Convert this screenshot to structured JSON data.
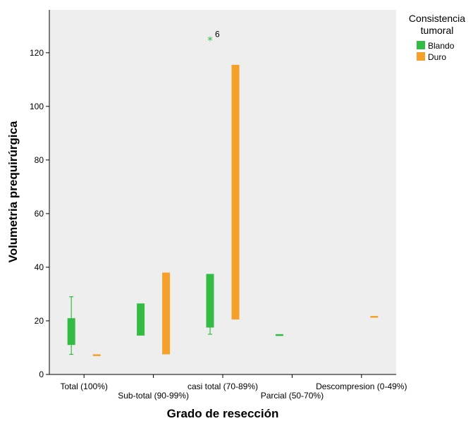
{
  "chart_data": {
    "type": "boxplot",
    "xlabel": "Grado de resección",
    "ylabel": "Volumetria prequirúrgica",
    "ylim": [
      0,
      136
    ],
    "yticks": [
      0,
      20,
      40,
      60,
      80,
      100,
      120
    ],
    "grid": false,
    "categories": [
      "Total (100%)",
      "Sub-total (90-99%)",
      "casi total (70-89%)",
      "Parcial (50-70%)",
      "Descompresion (0-49%)"
    ],
    "legend": {
      "title_line1": "Consistencia",
      "title_line2": "tumoral",
      "placement": "right",
      "entries": [
        "Blando",
        "Duro"
      ]
    },
    "series": [
      {
        "name": "Blando",
        "color": "#33bb44",
        "boxes": [
          {
            "category": 0,
            "min": 7.5,
            "q1": 11,
            "median": 17,
            "q3": 21,
            "max": 29
          },
          {
            "category": 1,
            "min": 14.5,
            "q1": 14.5,
            "median": 20,
            "q3": 26.5,
            "max": 26.5
          },
          {
            "category": 2,
            "min": 15,
            "q1": 17.5,
            "median": 25,
            "q3": 37.5,
            "max": 37.5
          },
          {
            "category": 3,
            "min": 14.7,
            "q1": 14.7,
            "median": 14.7,
            "q3": 14.7,
            "max": 14.7
          }
        ],
        "outliers": [
          {
            "category": 2,
            "value": 124.5,
            "label": "6"
          }
        ]
      },
      {
        "name": "Duro",
        "color": "#f5a02a",
        "boxes": [
          {
            "category": 0,
            "min": 7.2,
            "q1": 7.2,
            "median": 7.2,
            "q3": 7.2,
            "max": 7.2
          },
          {
            "category": 1,
            "min": 7.5,
            "q1": 7.5,
            "median": 20,
            "q3": 38,
            "max": 38
          },
          {
            "category": 2,
            "min": 20.5,
            "q1": 20.5,
            "median": 60,
            "q3": 115.5,
            "max": 115.5
          },
          {
            "category": 4,
            "min": 21.5,
            "q1": 21.5,
            "median": 21.5,
            "q3": 21.5,
            "max": 21.5
          }
        ],
        "outliers": []
      }
    ]
  }
}
